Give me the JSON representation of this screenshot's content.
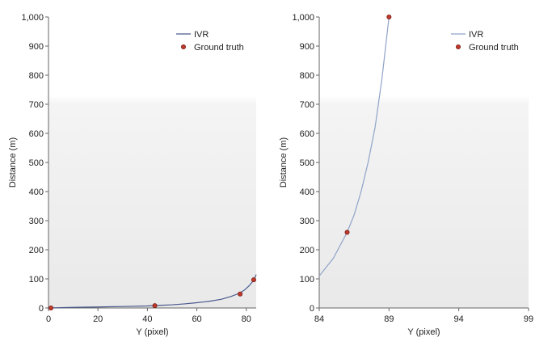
{
  "chart_data": [
    {
      "type": "line",
      "xlabel": "Y (pixel)",
      "ylabel": "Distance (m)",
      "xlim": [
        0,
        84
      ],
      "ylim": [
        0,
        1000
      ],
      "xticks": [
        0,
        20,
        40,
        60,
        80
      ],
      "yticks": [
        0,
        100,
        200,
        300,
        400,
        500,
        600,
        700,
        800,
        900,
        1000
      ],
      "xtick_labels": [
        "0",
        "20",
        "40",
        "60",
        "80"
      ],
      "ytick_labels": [
        "0",
        "100",
        "200",
        "300",
        "400",
        "500",
        "600",
        "700",
        "800",
        "900",
        "1,000"
      ],
      "legend_position": "top-right",
      "series": [
        {
          "name": "IVR",
          "kind": "line",
          "color": "#4a5a8c",
          "x": [
            0,
            10,
            20,
            30,
            40,
            45,
            50,
            55,
            60,
            65,
            70,
            74,
            77,
            79,
            81,
            83,
            84
          ],
          "y": [
            0,
            2,
            3.5,
            5,
            7,
            9,
            11,
            14,
            18,
            23,
            30,
            40,
            50,
            60,
            75,
            95,
            115
          ]
        },
        {
          "name": "Ground truth",
          "kind": "scatter",
          "color": "#c0392b",
          "x": [
            1,
            43,
            77.5,
            83
          ],
          "y": [
            0,
            8,
            48,
            97
          ]
        }
      ]
    },
    {
      "type": "line",
      "xlabel": "Y (pixel)",
      "ylabel": "Distance (m)",
      "xlim": [
        84,
        99
      ],
      "ylim": [
        0,
        1000
      ],
      "xticks": [
        84,
        89,
        94,
        99
      ],
      "yticks": [
        0,
        100,
        200,
        300,
        400,
        500,
        600,
        700,
        800,
        900,
        1000
      ],
      "xtick_labels": [
        "84",
        "89",
        "94",
        "99"
      ],
      "ytick_labels": [
        "0",
        "100",
        "200",
        "300",
        "400",
        "500",
        "600",
        "700",
        "800",
        "900",
        "1,000"
      ],
      "legend_position": "top-right",
      "series": [
        {
          "name": "IVR",
          "kind": "line",
          "color": "#8fa3c8",
          "x": [
            84,
            85,
            86,
            86.5,
            87,
            87.5,
            88,
            88.5,
            89
          ],
          "y": [
            110,
            170,
            260,
            320,
            400,
            500,
            620,
            790,
            1000
          ]
        },
        {
          "name": "Ground truth",
          "kind": "scatter",
          "color": "#c0392b",
          "x": [
            86,
            89
          ],
          "y": [
            260,
            1000
          ]
        }
      ]
    }
  ]
}
